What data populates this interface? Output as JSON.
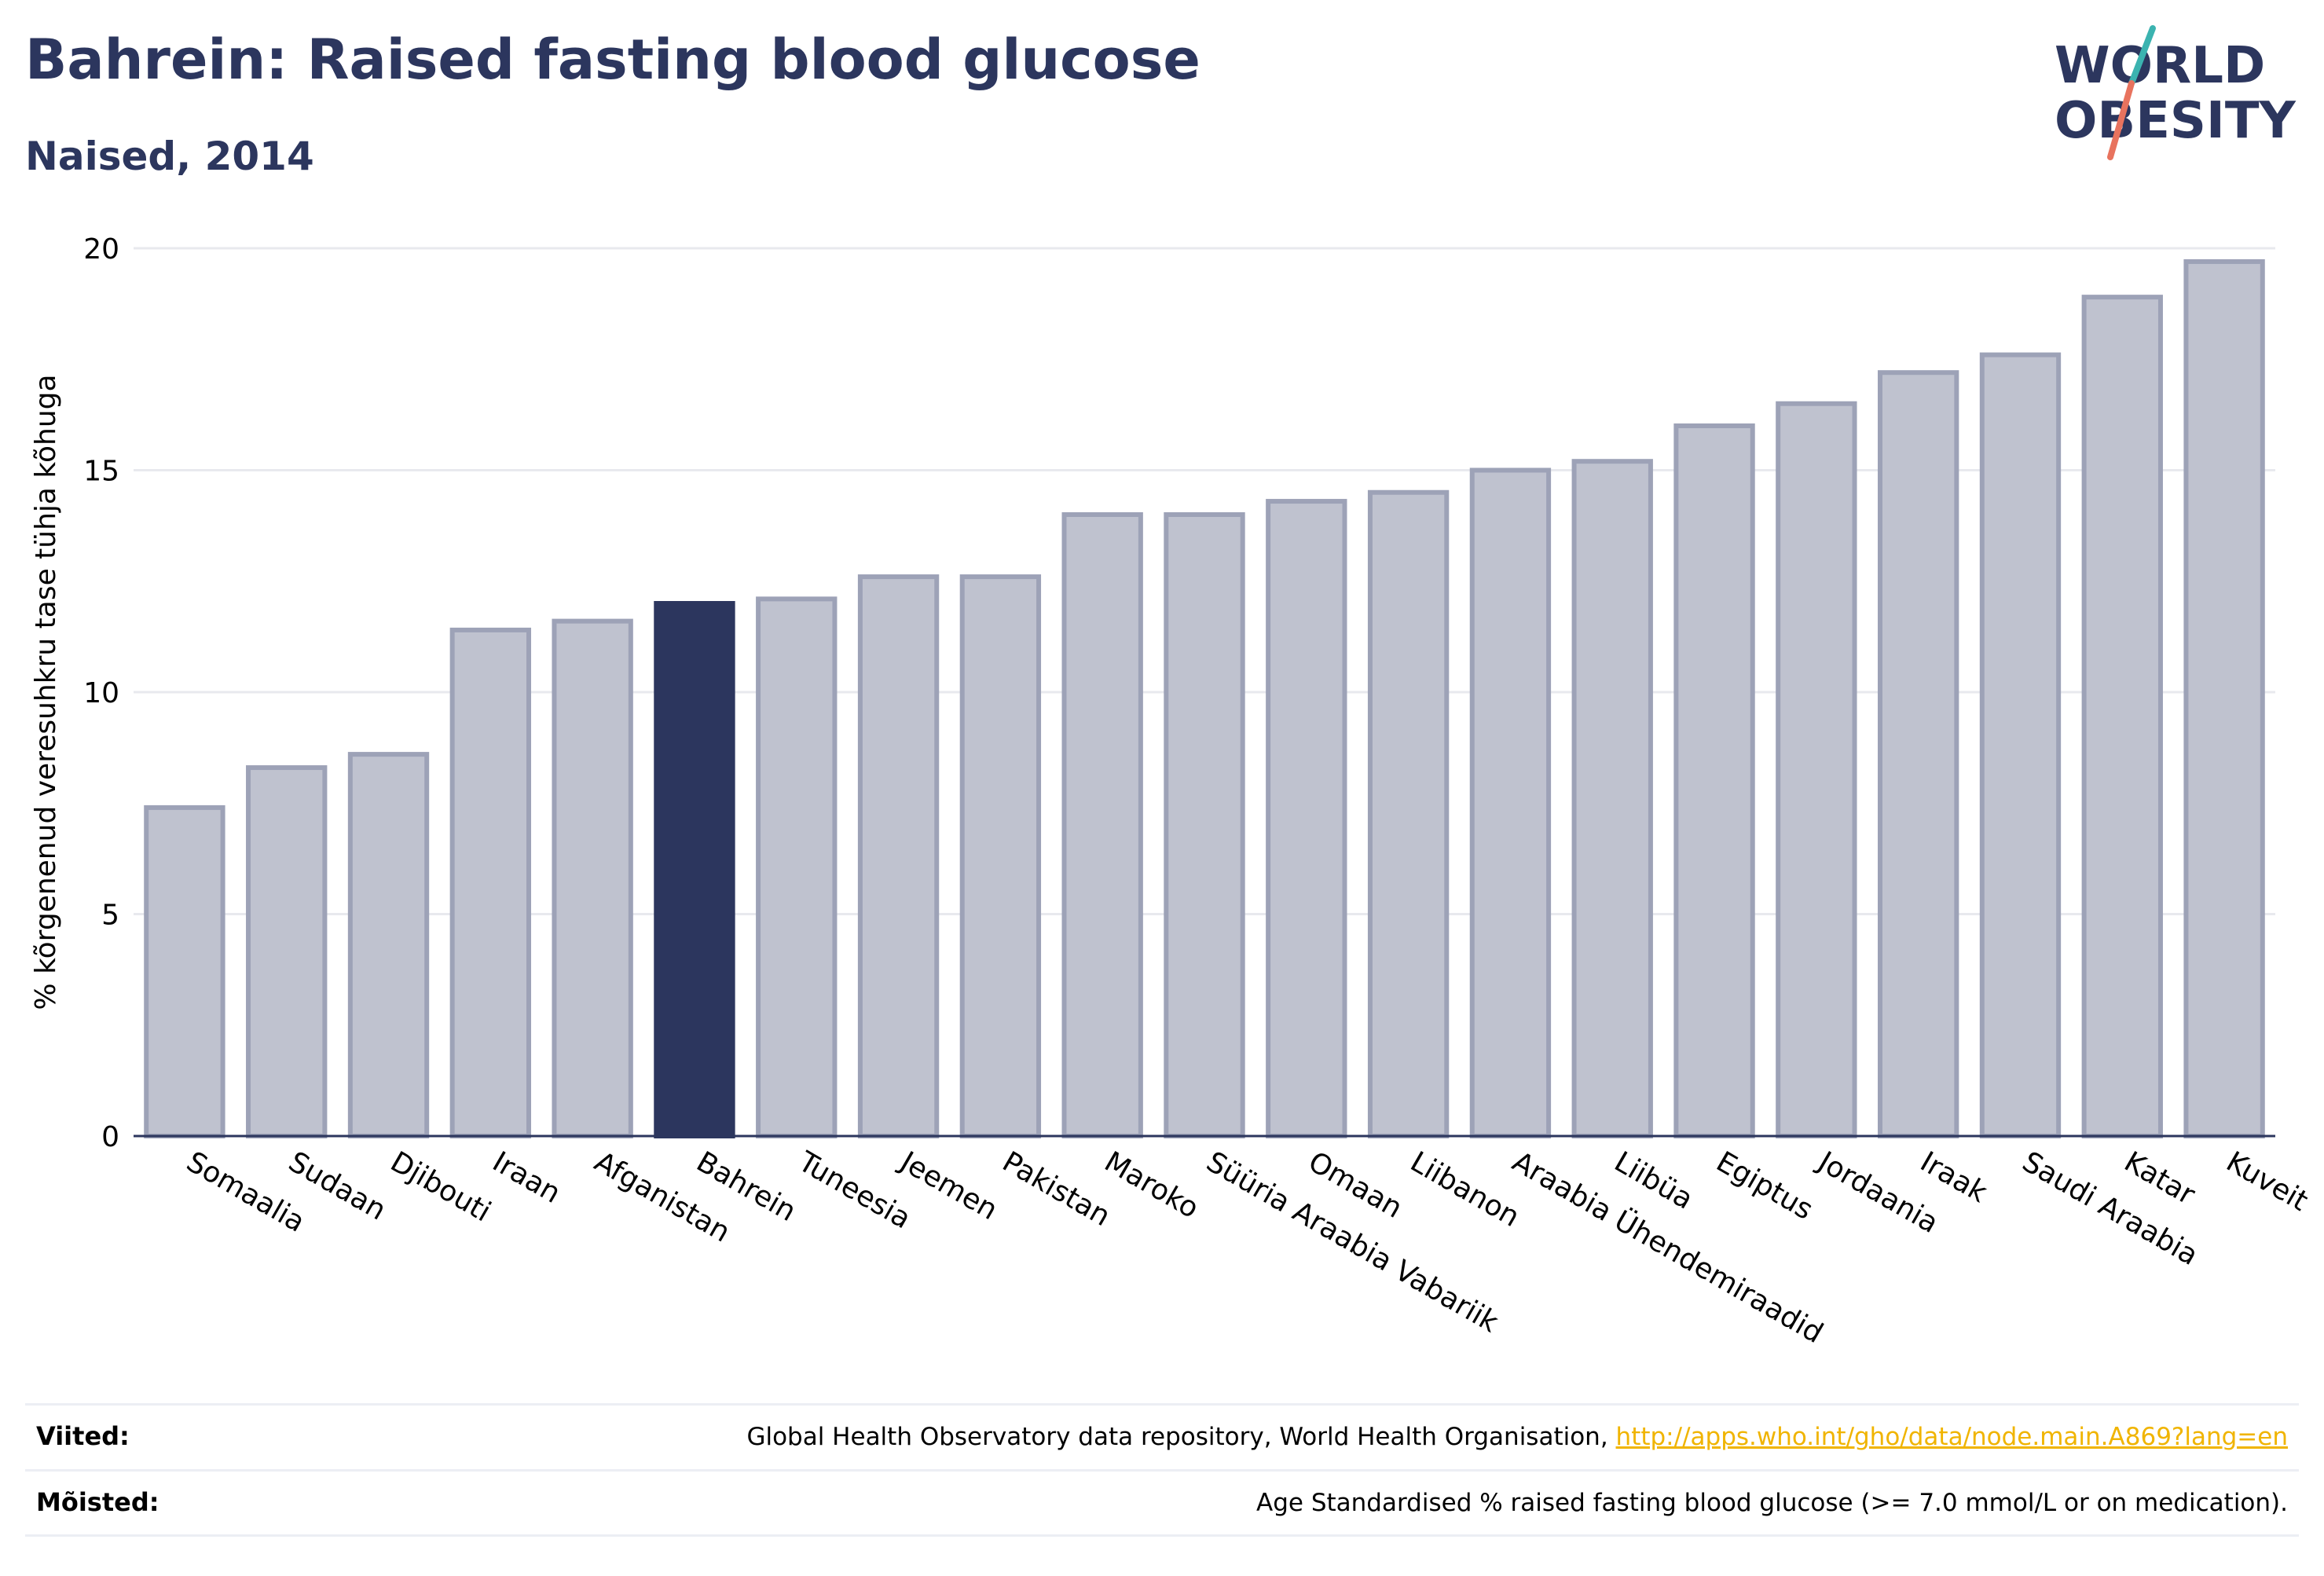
{
  "header": {
    "title": "Bahrein: Raised fasting blood glucose",
    "subtitle": "Naised, 2014"
  },
  "logo": {
    "line1": "WORLD",
    "line2": "OBESITY"
  },
  "chart_data": {
    "type": "bar",
    "categories": [
      "Somaalia",
      "Sudaan",
      "Djibouti",
      "Iraan",
      "Afganistan",
      "Bahrein",
      "Tuneesia",
      "Jeemen",
      "Pakistan",
      "Maroko",
      "Süüria Araabia Vabariik",
      "Omaan",
      "Liibanon",
      "Araabia Ühendemiraadid",
      "Liibüa",
      "Egiptus",
      "Jordaania",
      "Iraak",
      "Saudi Araabia",
      "Katar",
      "Kuveit"
    ],
    "values": [
      7.4,
      8.3,
      8.6,
      11.4,
      11.6,
      12.0,
      12.1,
      12.6,
      12.6,
      14.0,
      14.0,
      14.3,
      14.5,
      15.0,
      15.2,
      16.0,
      16.5,
      17.2,
      17.6,
      18.9,
      19.7
    ],
    "highlight": "Bahrein",
    "ylabel": "% kõrgenenud veresuhkru tase tühja kõhuga",
    "ylim": [
      0,
      20
    ],
    "yticks": [
      0,
      5,
      10,
      15,
      20
    ],
    "grid": true,
    "colors": {
      "bar": "#bfc2cf",
      "bar_border": "#9da2b7",
      "highlight": "#2c365e",
      "grid": "#e8e9ee",
      "axis": "#2c365e"
    }
  },
  "footer": {
    "sources_label": "Viited:",
    "sources_text": "Global Health Observatory data repository, World Health Organisation, ",
    "sources_link": "http://apps.who.int/gho/data/node.main.A869?lang=en",
    "definitions_label": "Mõisted:",
    "definitions_text": "Age Standardised % raised fasting blood glucose (>= 7.0 mmol/L or on medication)."
  }
}
